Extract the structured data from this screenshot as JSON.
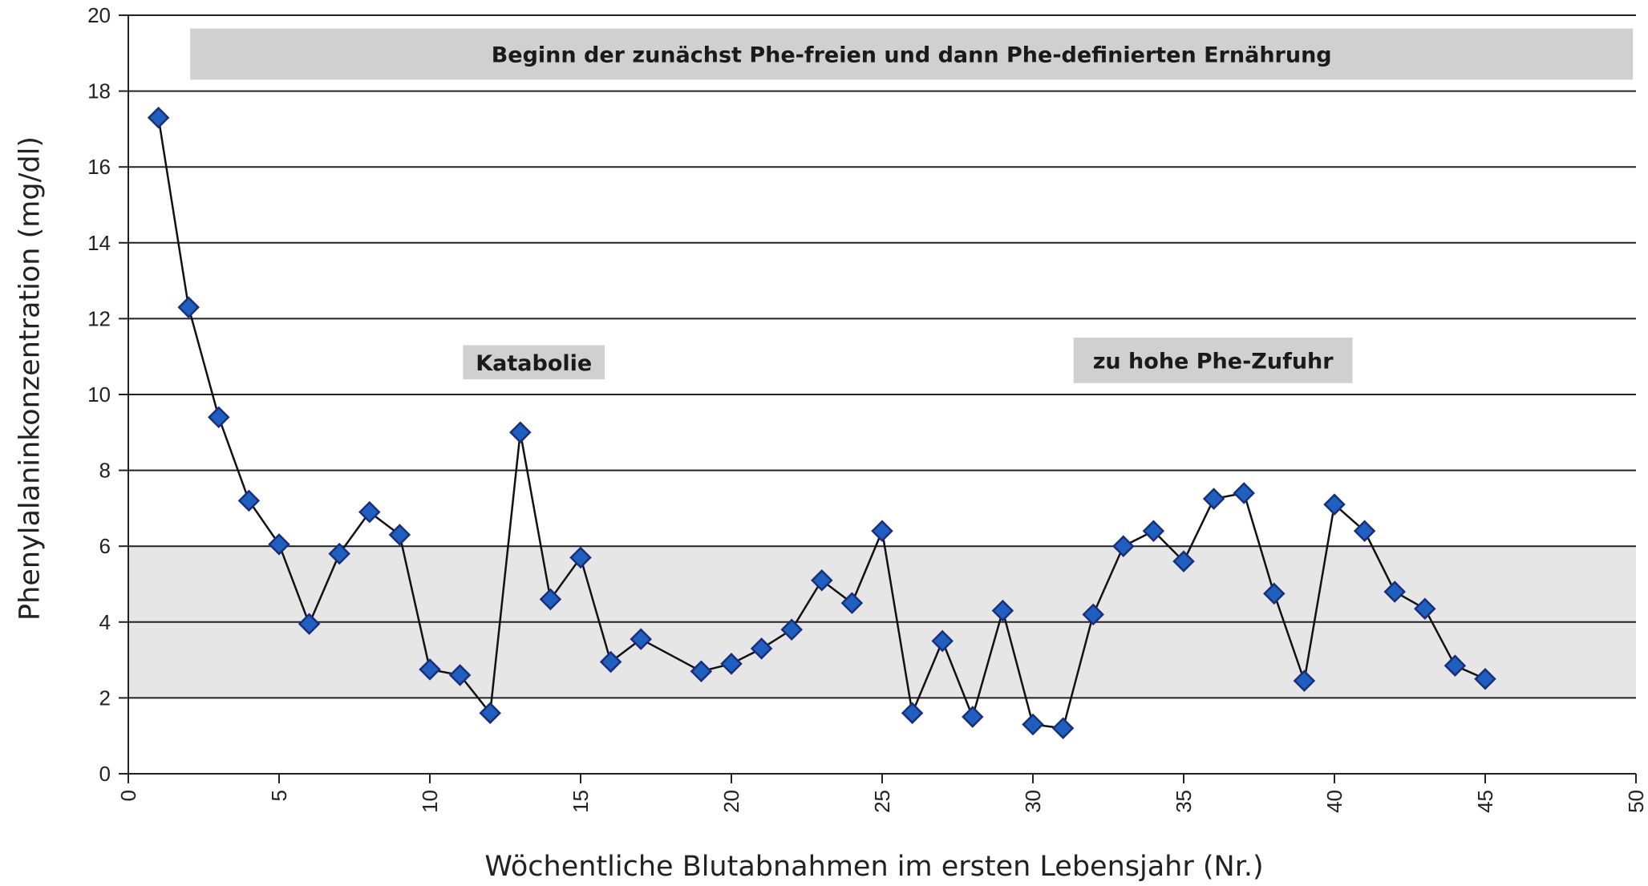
{
  "chart_data": {
    "type": "scatter",
    "xlabel": "Wöchentliche Blutabnahmen im ersten Lebensjahr (Nr.)",
    "ylabel": "Phenylalaninkonzentration (mg/dl)",
    "xlim": [
      0,
      50
    ],
    "ylim": [
      0,
      20
    ],
    "x_ticks": [
      0,
      5,
      10,
      15,
      20,
      25,
      30,
      35,
      40,
      45,
      50
    ],
    "y_ticks": [
      0,
      2,
      4,
      6,
      8,
      10,
      12,
      14,
      16,
      18,
      20
    ],
    "grid": "horizontal",
    "target_range": [
      2,
      6
    ],
    "connected": true,
    "marker": "diamond",
    "colors": {
      "marker_fill": "#1f5fbf",
      "marker_edge": "#1a2f7a",
      "line": "#111111",
      "band": "#e6e6e6",
      "annotation_box": "#d0d0d0"
    },
    "series": [
      {
        "x": [
          1,
          2,
          3,
          4,
          5,
          6,
          7,
          8,
          9,
          10,
          11,
          12,
          13,
          14,
          15,
          16,
          17,
          19,
          20,
          21,
          22,
          23,
          24,
          25,
          26,
          27,
          28,
          29,
          30,
          31,
          32,
          33,
          34,
          35,
          36,
          37,
          38,
          39,
          40,
          41,
          42,
          43,
          44,
          45
        ],
        "y": [
          17.3,
          12.3,
          9.4,
          7.2,
          6.05,
          3.95,
          5.8,
          6.9,
          6.3,
          2.75,
          2.6,
          1.6,
          9.0,
          4.6,
          5.7,
          2.95,
          3.55,
          2.7,
          2.9,
          3.3,
          3.8,
          5.1,
          4.5,
          6.4,
          1.6,
          3.5,
          1.5,
          4.3,
          1.3,
          1.2,
          4.2,
          6.0,
          6.4,
          5.6,
          7.25,
          7.4,
          4.75,
          2.45,
          7.1,
          6.4,
          4.8,
          4.35,
          2.85,
          2.5
        ]
      }
    ],
    "annotations": [
      {
        "text": "Beginn der zunächst Phe-freien und dann Phe-definierten Ernährung",
        "x_range": [
          2.05,
          49.9
        ],
        "y_range": [
          18.3,
          19.65
        ]
      },
      {
        "text": "Katabolie",
        "x_range": [
          11.1,
          15.8
        ],
        "y_range": [
          10.4,
          11.3
        ]
      },
      {
        "text": "zu hohe Phe-Zufuhr",
        "x_range": [
          31.35,
          40.6
        ],
        "y_range": [
          10.3,
          11.5
        ]
      }
    ]
  }
}
